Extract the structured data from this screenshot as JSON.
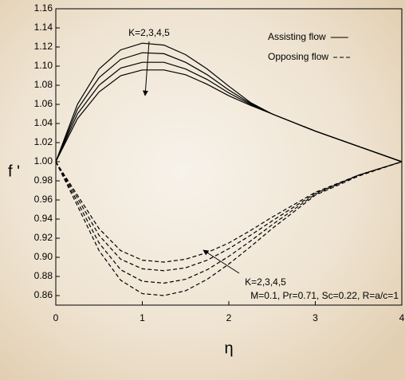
{
  "chart_data": {
    "type": "line",
    "ylabel": "f '",
    "xlabel": "η",
    "x": [
      0,
      0.25,
      0.5,
      0.75,
      1,
      1.25,
      1.5,
      1.75,
      2,
      2.25,
      2.5,
      3,
      3.5,
      4
    ],
    "series": [
      {
        "color": "#000",
        "style": "solid",
        "values": [
          1.0,
          1.06,
          1.097,
          1.117,
          1.124,
          1.122,
          1.112,
          1.097,
          1.079,
          1.062,
          1.05,
          1.032,
          1.016,
          1.0
        ]
      },
      {
        "color": "#000",
        "style": "solid",
        "values": [
          1.0,
          1.055,
          1.088,
          1.107,
          1.114,
          1.113,
          1.104,
          1.091,
          1.075,
          1.061,
          1.05,
          1.032,
          1.016,
          1.0
        ]
      },
      {
        "color": "#000",
        "style": "solid",
        "values": [
          1.0,
          1.05,
          1.08,
          1.098,
          1.104,
          1.104,
          1.097,
          1.086,
          1.072,
          1.06,
          1.05,
          1.032,
          1.016,
          1.0
        ]
      },
      {
        "color": "#000",
        "style": "solid",
        "values": [
          1.0,
          1.045,
          1.073,
          1.09,
          1.096,
          1.096,
          1.091,
          1.081,
          1.069,
          1.059,
          1.05,
          1.032,
          1.016,
          1.0
        ]
      },
      {
        "color": "#000",
        "style": "dashed",
        "values": [
          1.0,
          0.965,
          0.93,
          0.907,
          0.897,
          0.895,
          0.898,
          0.905,
          0.915,
          0.928,
          0.942,
          0.968,
          0.986,
          1.0
        ]
      },
      {
        "color": "#000",
        "style": "dashed",
        "values": [
          1.0,
          0.962,
          0.923,
          0.898,
          0.888,
          0.886,
          0.889,
          0.897,
          0.909,
          0.923,
          0.938,
          0.967,
          0.986,
          1.0
        ]
      },
      {
        "color": "#000",
        "style": "dashed",
        "values": [
          1.0,
          0.958,
          0.915,
          0.887,
          0.875,
          0.873,
          0.877,
          0.887,
          0.901,
          0.917,
          0.934,
          0.966,
          0.986,
          1.0
        ]
      },
      {
        "color": "#000",
        "style": "dashed",
        "values": [
          1.0,
          0.954,
          0.907,
          0.876,
          0.862,
          0.86,
          0.865,
          0.877,
          0.893,
          0.911,
          0.93,
          0.965,
          0.985,
          1.0
        ]
      }
    ],
    "legend": [
      {
        "label": "Assisting flow",
        "style": "solid"
      },
      {
        "label": "Opposing flow",
        "style": "dashed"
      }
    ],
    "annotations": [
      "K=2,3,4,5",
      "K=2,3,4,5",
      "M=0.1, Pr=0.71, Sc=0.22, R=a/c=1"
    ],
    "xlim": [
      0,
      4
    ],
    "xticks": [
      0,
      1,
      2,
      3,
      4
    ],
    "ylim": [
      0.85,
      1.16
    ],
    "yticks": [
      0.86,
      0.88,
      {
        "value": 0.9,
        "label": "0.90"
      },
      0.92,
      0.94,
      0.96,
      0.98,
      {
        "value": 1,
        "label": "1.00"
      },
      1.02,
      1.04,
      1.06,
      1.08,
      {
        "value": 1.1,
        "label": "1.10"
      },
      1.12,
      1.14,
      1.16
    ]
  }
}
